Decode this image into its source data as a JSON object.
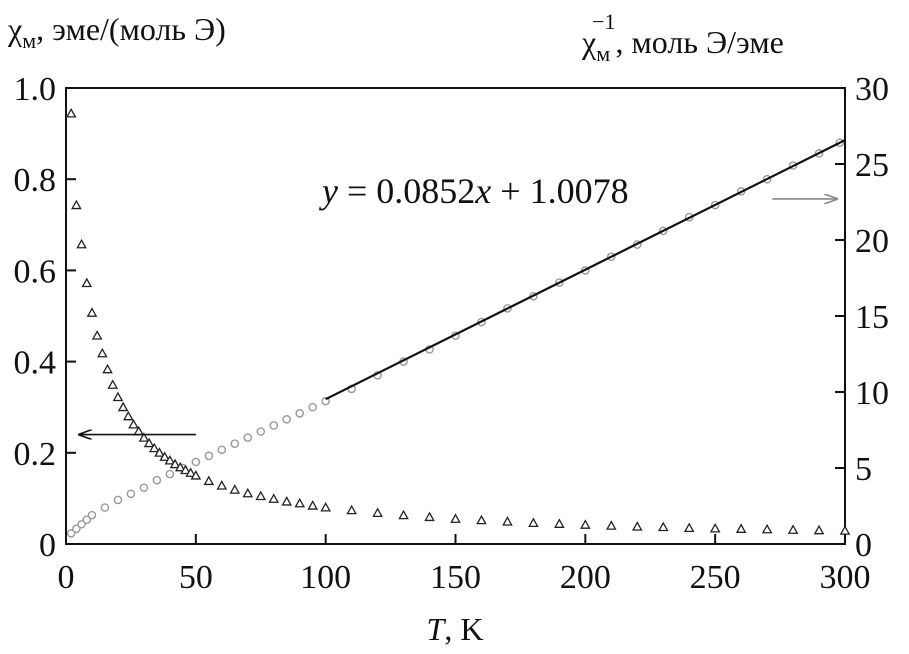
{
  "chart_data": {
    "type": "scatter",
    "title": "",
    "xlabel": "T, K",
    "xlabel_parts": {
      "symbol": "T",
      "rest": ", K"
    },
    "ylabel_left": "χм, эме/(моль Э)",
    "ylabel_left_parts": {
      "symbol": "χ",
      "sub": "м",
      "rest": ", эме/(моль Э)"
    },
    "ylabel_right": "χм−1, моль  Э/эме",
    "ylabel_right_parts": {
      "symbol": "χ",
      "sub": "м",
      "sup": "−1",
      "rest": ", моль  Э/эме"
    },
    "xlim": [
      0,
      300
    ],
    "ylim_left": [
      0,
      1.0
    ],
    "ylim_right": [
      0,
      30
    ],
    "x_ticks": [
      0,
      50,
      100,
      150,
      200,
      250,
      300
    ],
    "x_tick_labels": [
      "0",
      "50",
      "100",
      "150",
      "200",
      "250",
      "300"
    ],
    "y_left_ticks": [
      0,
      0.2,
      0.4,
      0.6,
      0.8,
      1.0
    ],
    "y_left_tick_labels": [
      "0",
      "0.2",
      "0.4",
      "0.6",
      "0.8",
      "1.0"
    ],
    "y_right_ticks": [
      0,
      5,
      10,
      15,
      20,
      25,
      30
    ],
    "y_right_tick_labels": [
      "0",
      "5",
      "10",
      "15",
      "20",
      "25",
      "30"
    ],
    "grid": false,
    "legend": "none",
    "annotation_equation": {
      "y": "y",
      "eq": " = 0.0852",
      "x": "x",
      "rest": " + 1.0078"
    },
    "fit_line": {
      "slope": 0.0852,
      "intercept": 1.0078,
      "x_range": [
        100,
        300
      ]
    },
    "series": [
      {
        "name": "",
        "marker": "triangle",
        "axis": "left",
        "x": [
          2,
          4,
          6,
          8,
          10,
          12,
          14,
          16,
          18,
          20,
          22,
          24,
          26,
          28,
          30,
          32,
          34,
          36,
          38,
          40,
          42,
          44,
          46,
          48,
          50,
          55,
          60,
          65,
          70,
          75,
          80,
          85,
          90,
          95,
          100,
          110,
          120,
          130,
          140,
          150,
          160,
          170,
          180,
          190,
          200,
          210,
          220,
          230,
          240,
          250,
          260,
          270,
          280,
          290,
          300
        ],
        "y": [
          0.944,
          0.743,
          0.657,
          0.572,
          0.507,
          0.457,
          0.418,
          0.383,
          0.349,
          0.322,
          0.3,
          0.28,
          0.262,
          0.247,
          0.233,
          0.221,
          0.21,
          0.2,
          0.191,
          0.183,
          0.175,
          0.168,
          0.162,
          0.156,
          0.15,
          0.138,
          0.128,
          0.119,
          0.111,
          0.105,
          0.099,
          0.093,
          0.089,
          0.084,
          0.08,
          0.074,
          0.068,
          0.063,
          0.059,
          0.055,
          0.052,
          0.049,
          0.046,
          0.044,
          0.042,
          0.04,
          0.038,
          0.037,
          0.035,
          0.034,
          0.033,
          0.032,
          0.031,
          0.03,
          0.029
        ]
      },
      {
        "name": "",
        "marker": "circle",
        "axis": "right",
        "x": [
          2,
          4,
          6,
          8,
          10,
          15,
          20,
          25,
          30,
          35,
          40,
          45,
          50,
          55,
          60,
          65,
          70,
          75,
          80,
          85,
          90,
          95,
          100,
          110,
          120,
          130,
          140,
          150,
          160,
          170,
          180,
          190,
          200,
          210,
          220,
          230,
          240,
          250,
          260,
          270,
          280,
          290,
          298
        ],
        "y": [
          0.7,
          1.0,
          1.3,
          1.6,
          1.9,
          2.4,
          2.9,
          3.3,
          3.7,
          4.2,
          4.6,
          5.0,
          5.4,
          5.8,
          6.2,
          6.6,
          7.0,
          7.4,
          7.8,
          8.2,
          8.6,
          9.0,
          9.4,
          10.2,
          11.1,
          12.0,
          12.8,
          13.7,
          14.6,
          15.5,
          16.3,
          17.2,
          18.0,
          18.9,
          19.7,
          20.6,
          21.5,
          22.3,
          23.2,
          24.0,
          24.9,
          25.7,
          26.4
        ]
      }
    ],
    "arrows": [
      {
        "points_to": "left",
        "from_x": 50,
        "to_x": 5,
        "y_left": 0.24
      },
      {
        "points_to": "right",
        "from_x": 272,
        "to_x": 297,
        "y_right": 22.7
      }
    ]
  }
}
